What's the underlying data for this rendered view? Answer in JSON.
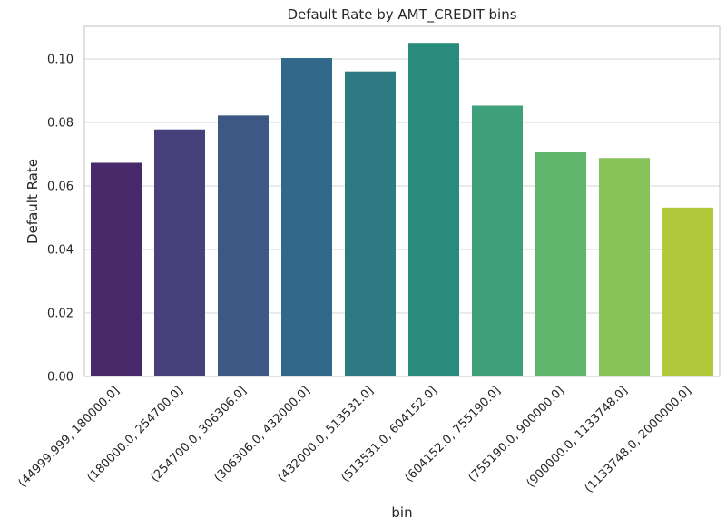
{
  "chart_data": {
    "type": "bar",
    "title": "Default Rate by AMT_CREDIT bins",
    "xlabel": "bin",
    "ylabel": "Default Rate",
    "categories": [
      "(44999.999, 180000.0]",
      "(180000.0, 254700.0]",
      "(254700.0, 306306.0]",
      "(306306.0, 432000.0]",
      "(432000.0, 513531.0]",
      "(513531.0, 604152.0]",
      "(604152.0, 755190.0]",
      "(755190.0, 900000.0]",
      "(900000.0, 1133748.0]",
      "(1133748.0, 2000000.0]"
    ],
    "values": [
      0.0673,
      0.0778,
      0.0822,
      0.1003,
      0.0961,
      0.1051,
      0.0853,
      0.0708,
      0.0688,
      0.0532
    ],
    "colors": [
      "#482a6b",
      "#46417a",
      "#3e5886",
      "#32698a",
      "#2e7a82",
      "#288b7c",
      "#3da07a",
      "#60b56c",
      "#88c35a",
      "#b1c83a"
    ],
    "yticks": [
      "0.00",
      "0.02",
      "0.04",
      "0.06",
      "0.08",
      "0.10"
    ],
    "ytick_values": [
      0,
      0.02,
      0.04,
      0.06,
      0.08,
      0.1
    ],
    "ylim": [
      0,
      0.1103
    ],
    "grid": true,
    "legend": "none"
  }
}
